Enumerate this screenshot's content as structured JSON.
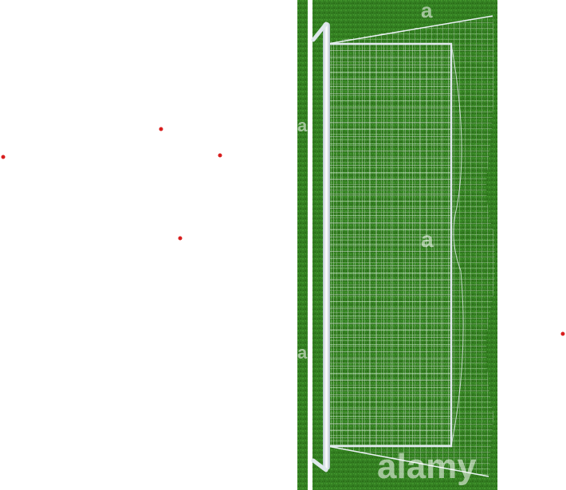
{
  "photo": {
    "subject": "soccer-goal-top-view",
    "colors": {
      "grass_dark": "#2f7a1e",
      "grass_light": "#3d8f28",
      "line_white": "#ffffff",
      "post": "#e6eef2",
      "net": "#f2f6f8"
    },
    "watermark": {
      "brand": "alamy",
      "mark": "a"
    }
  },
  "markers": {
    "color": "#d81e1e",
    "count": 5
  }
}
